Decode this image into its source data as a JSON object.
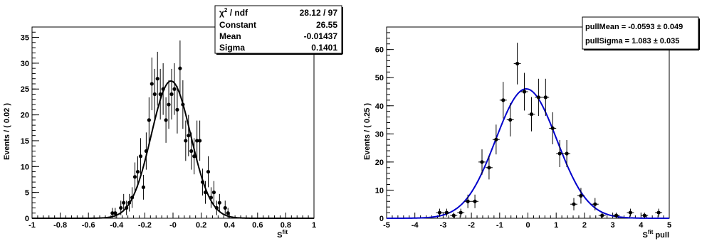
{
  "chart_data": [
    {
      "type": "scatter",
      "title": "",
      "xlabel": "S",
      "xlabel_sup": "fit",
      "ylabel": "Events / ( 0.02 )",
      "xlim": [
        -1,
        1
      ],
      "ylim": [
        0,
        37
      ],
      "x_ticks": [
        "-1",
        "-0.8",
        "-0.6",
        "-0.4",
        "-0.2",
        "-0",
        "0.2",
        "0.4",
        "0.6",
        "0.8",
        "1"
      ],
      "y_ticks": [
        "0",
        "5",
        "10",
        "15",
        "20",
        "25",
        "30",
        "35"
      ],
      "points": [
        {
          "x": -0.43,
          "y": 1,
          "err": 1.0
        },
        {
          "x": -0.41,
          "y": 1,
          "err": 1.0
        },
        {
          "x": -0.37,
          "y": 2,
          "err": 1.4
        },
        {
          "x": -0.35,
          "y": 3,
          "err": 1.7
        },
        {
          "x": -0.33,
          "y": 2,
          "err": 1.4
        },
        {
          "x": -0.31,
          "y": 3,
          "err": 1.7
        },
        {
          "x": -0.29,
          "y": 4,
          "err": 2.0
        },
        {
          "x": -0.27,
          "y": 8,
          "err": 2.8
        },
        {
          "x": -0.25,
          "y": 9,
          "err": 3.0
        },
        {
          "x": -0.23,
          "y": 12,
          "err": 3.5
        },
        {
          "x": -0.21,
          "y": 6,
          "err": 2.4
        },
        {
          "x": -0.19,
          "y": 13,
          "err": 3.6
        },
        {
          "x": -0.17,
          "y": 19,
          "err": 4.4
        },
        {
          "x": -0.15,
          "y": 26,
          "err": 5.1
        },
        {
          "x": -0.13,
          "y": 24,
          "err": 4.9
        },
        {
          "x": -0.11,
          "y": 27,
          "err": 5.2
        },
        {
          "x": -0.09,
          "y": 24,
          "err": 4.9
        },
        {
          "x": -0.07,
          "y": 25,
          "err": 5.0
        },
        {
          "x": -0.05,
          "y": 19,
          "err": 4.4
        },
        {
          "x": -0.03,
          "y": 22,
          "err": 4.7
        },
        {
          "x": -0.01,
          "y": 24,
          "err": 4.9
        },
        {
          "x": 0.01,
          "y": 25,
          "err": 5.0
        },
        {
          "x": 0.03,
          "y": 21,
          "err": 4.6
        },
        {
          "x": 0.05,
          "y": 29,
          "err": 5.4
        },
        {
          "x": 0.07,
          "y": 22,
          "err": 4.7
        },
        {
          "x": 0.09,
          "y": 15,
          "err": 3.9
        },
        {
          "x": 0.11,
          "y": 16,
          "err": 4.0
        },
        {
          "x": 0.13,
          "y": 13,
          "err": 3.6
        },
        {
          "x": 0.15,
          "y": 12,
          "err": 3.5
        },
        {
          "x": 0.17,
          "y": 15,
          "err": 3.9
        },
        {
          "x": 0.19,
          "y": 15,
          "err": 3.9
        },
        {
          "x": 0.21,
          "y": 7,
          "err": 2.6
        },
        {
          "x": 0.23,
          "y": 5,
          "err": 2.2
        },
        {
          "x": 0.25,
          "y": 9,
          "err": 3.0
        },
        {
          "x": 0.27,
          "y": 4,
          "err": 2.0
        },
        {
          "x": 0.29,
          "y": 5,
          "err": 2.2
        },
        {
          "x": 0.31,
          "y": 2,
          "err": 1.4
        },
        {
          "x": 0.33,
          "y": 3,
          "err": 1.7
        },
        {
          "x": 0.37,
          "y": 2,
          "err": 1.4
        },
        {
          "x": 0.39,
          "y": 1,
          "err": 1.0
        }
      ],
      "fit": {
        "type": "gaussian",
        "constant": 26.55,
        "mean": -0.01437,
        "sigma": 0.1401,
        "color": "#000000"
      },
      "stats_box": {
        "rows": [
          {
            "label": "χ² / ndf",
            "value": "28.12 / 97"
          },
          {
            "label": "Constant",
            "value": "26.55"
          },
          {
            "label": "Mean",
            "value": "-0.01437"
          },
          {
            "label": "Sigma",
            "value": "0.1401"
          }
        ]
      }
    },
    {
      "type": "scatter",
      "title": "",
      "xlabel": "S",
      "xlabel_sup": "fit",
      "xlabel_suffix": " pull",
      "ylabel": "Events / ( 0.25 )",
      "xlim": [
        -5,
        5
      ],
      "ylim": [
        0,
        68
      ],
      "x_ticks": [
        "-5",
        "-4",
        "-3",
        "-2",
        "-1",
        "0",
        "1",
        "2",
        "3",
        "4",
        "5"
      ],
      "y_ticks": [
        "0",
        "10",
        "20",
        "30",
        "40",
        "50",
        "60"
      ],
      "points": [
        {
          "x": -3.125,
          "y": 2,
          "err": 1.4
        },
        {
          "x": -2.875,
          "y": 2,
          "err": 1.4
        },
        {
          "x": -2.625,
          "y": 1,
          "err": 1.0
        },
        {
          "x": -2.375,
          "y": 2,
          "err": 1.4
        },
        {
          "x": -2.125,
          "y": 6,
          "err": 2.4
        },
        {
          "x": -1.875,
          "y": 6,
          "err": 2.4
        },
        {
          "x": -1.625,
          "y": 20,
          "err": 4.5
        },
        {
          "x": -1.375,
          "y": 18,
          "err": 4.2
        },
        {
          "x": -1.125,
          "y": 28,
          "err": 5.3
        },
        {
          "x": -0.875,
          "y": 42,
          "err": 6.5
        },
        {
          "x": -0.625,
          "y": 35,
          "err": 5.9
        },
        {
          "x": -0.375,
          "y": 55,
          "err": 7.4
        },
        {
          "x": -0.125,
          "y": 45,
          "err": 6.7
        },
        {
          "x": 0.125,
          "y": 37,
          "err": 6.1
        },
        {
          "x": 0.375,
          "y": 43,
          "err": 6.6
        },
        {
          "x": 0.625,
          "y": 43,
          "err": 6.6
        },
        {
          "x": 0.875,
          "y": 32,
          "err": 5.7
        },
        {
          "x": 1.125,
          "y": 23,
          "err": 4.8
        },
        {
          "x": 1.375,
          "y": 23,
          "err": 4.8
        },
        {
          "x": 1.625,
          "y": 5,
          "err": 2.2
        },
        {
          "x": 1.875,
          "y": 8,
          "err": 2.8
        },
        {
          "x": 2.375,
          "y": 5,
          "err": 2.2
        },
        {
          "x": 2.625,
          "y": 1,
          "err": 1.0
        },
        {
          "x": 3.125,
          "y": 1,
          "err": 1.0
        },
        {
          "x": 3.625,
          "y": 2,
          "err": 1.4
        },
        {
          "x": 4.125,
          "y": 1,
          "err": 1.0
        },
        {
          "x": 4.625,
          "y": 2,
          "err": 1.4
        }
      ],
      "fit": {
        "type": "gaussian",
        "constant": 46,
        "mean": -0.0593,
        "sigma": 1.083,
        "color": "#0000cc"
      },
      "stats_box": {
        "rows": [
          {
            "label": "pullMean = ",
            "value": "-0.0593 ± 0.049"
          },
          {
            "label": "pullSigma = ",
            "value": " 1.083 ± 0.035"
          }
        ]
      }
    }
  ]
}
